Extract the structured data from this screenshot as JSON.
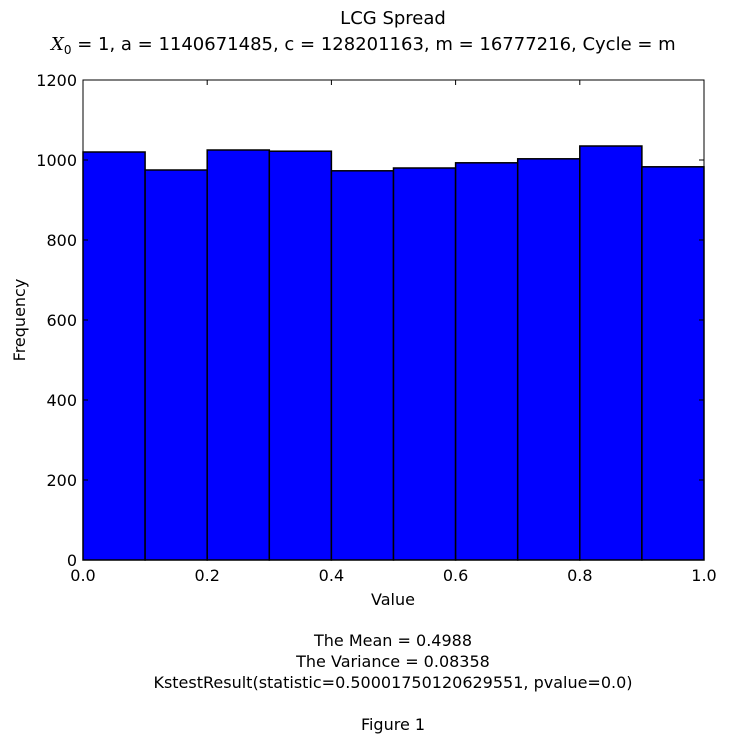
{
  "chart_data": {
    "type": "bar",
    "title": "LCG Spread",
    "subtitle": {
      "symbol": "X",
      "subscript": "0",
      "text": " = 1, a = 1140671485, c = 128201163, m = 16777216, Cycle = m"
    },
    "xlabel": "Value",
    "ylabel": "Frequency",
    "xlim": [
      0,
      1
    ],
    "ylim": [
      0,
      1200
    ],
    "x_ticks": [
      "0.0",
      "0.2",
      "0.4",
      "0.6",
      "0.8",
      "1.0"
    ],
    "y_ticks": [
      "0",
      "200",
      "400",
      "600",
      "800",
      "1000",
      "1200"
    ],
    "bin_edges": [
      0.0,
      0.1,
      0.2,
      0.3,
      0.4,
      0.5,
      0.6,
      0.7,
      0.8,
      0.9,
      1.0
    ],
    "values": [
      1020,
      975,
      1025,
      1022,
      973,
      980,
      993,
      1003,
      1035,
      983
    ],
    "bar_color": "#0000ff",
    "edge_color": "#000000",
    "grid": false,
    "annotations": [
      "The Mean = 0.4988",
      "The Variance = 0.08358",
      "KstestResult(statistic=0.50001750120629551, pvalue=0.0)"
    ]
  },
  "figure_label": "Figure 1"
}
